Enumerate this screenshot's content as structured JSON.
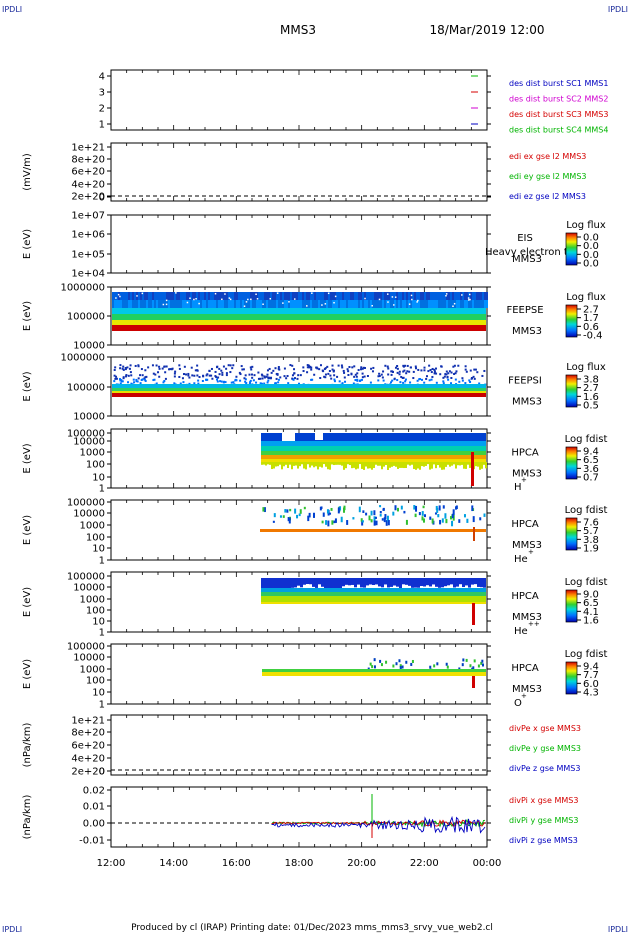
{
  "corner_label": "IPDLI",
  "header": {
    "mission": "MMS3",
    "datetime": "18/Mar/2019 12:00"
  },
  "footer": "Produced by cl (IRAP)   Printing date: 01/Dec/2023   mms_mms3_srvy_vue_web2.cl",
  "colors": {
    "red": "#d40000",
    "green": "#00b400",
    "blue": "#0000c0",
    "magenta": "#d000d0"
  },
  "time_axis": {
    "ticks": [
      "12:00",
      "14:00",
      "16:00",
      "18:00",
      "20:00",
      "22:00",
      "00:00"
    ]
  },
  "chart_data": [
    {
      "type": "line",
      "id": "burst",
      "ylabel": "",
      "y_ticks": [
        "4",
        "3",
        "2",
        "1"
      ],
      "legend": [
        {
          "label": "des dist burst SC1 MMS1",
          "color": "blue"
        },
        {
          "label": "des dist burst SC2 MMS2",
          "color": "magenta"
        },
        {
          "label": "des dist burst SC3 MMS3",
          "color": "red"
        },
        {
          "label": "des dist burst SC4 MMS4",
          "color": "green"
        }
      ]
    },
    {
      "type": "line",
      "id": "edi",
      "ylabel": "(mV/m)",
      "y_ticks": [
        "1e+21",
        "8e+20",
        "6e+20",
        "4e+20",
        "2e+20",
        "0"
      ],
      "legend": [
        {
          "label": "edi ex gse l2 MMS3",
          "color": "red"
        },
        {
          "label": "edi ey gse l2 MMS3",
          "color": "green"
        },
        {
          "label": "edi ez gse l2 MMS3",
          "color": "blue"
        }
      ]
    },
    {
      "type": "heatmap",
      "id": "eis",
      "ylabel": "E (eV)",
      "y_ticks": [
        "1e+07",
        "1e+06",
        "1e+05",
        "1e+04"
      ],
      "instrument": "EIS",
      "spacecraft": "MMS3",
      "note": "Heavy electron to",
      "colorbar": {
        "title": "Log flux",
        "ticks": [
          "0.0",
          "0.0",
          "0.0",
          "0.0"
        ]
      }
    },
    {
      "type": "heatmap",
      "id": "feepse",
      "ylabel": "E (eV)",
      "y_ticks": [
        "1000000",
        "100000",
        "10000"
      ],
      "instrument": "FEEPSE",
      "spacecraft": "MMS3",
      "colorbar": {
        "title": "Log flux",
        "ticks": [
          "2.7",
          "1.7",
          "0.6",
          "-0.4"
        ]
      }
    },
    {
      "type": "heatmap",
      "id": "feepsi",
      "ylabel": "E (eV)",
      "y_ticks": [
        "1000000",
        "100000",
        "10000"
      ],
      "instrument": "FEEPSI",
      "spacecraft": "MMS3",
      "colorbar": {
        "title": "Log flux",
        "ticks": [
          "3.8",
          "2.7",
          "1.6",
          "0.5"
        ]
      }
    },
    {
      "type": "heatmap",
      "id": "hpca_h",
      "ylabel": "E (eV)",
      "y_ticks": [
        "100000",
        "10000",
        "1000",
        "100",
        "10",
        "1"
      ],
      "instrument": "HPCA",
      "spacecraft": "MMS3",
      "species": "H",
      "charge": "+",
      "colorbar": {
        "title": "Log fdist",
        "ticks": [
          "9.4",
          "6.5",
          "3.6",
          "0.7"
        ]
      }
    },
    {
      "type": "heatmap",
      "id": "hpca_he1",
      "ylabel": "E (eV)",
      "y_ticks": [
        "100000",
        "10000",
        "1000",
        "100",
        "10",
        "1"
      ],
      "instrument": "HPCA",
      "spacecraft": "MMS3",
      "species": "He",
      "charge": "+",
      "colorbar": {
        "title": "Log fdist",
        "ticks": [
          "7.6",
          "5.7",
          "3.8",
          "1.9"
        ]
      }
    },
    {
      "type": "heatmap",
      "id": "hpca_he2",
      "ylabel": "E (eV)",
      "y_ticks": [
        "100000",
        "10000",
        "1000",
        "100",
        "10",
        "1"
      ],
      "instrument": "HPCA",
      "spacecraft": "MMS3",
      "species": "He",
      "charge": "++",
      "colorbar": {
        "title": "Log fdist",
        "ticks": [
          "9.0",
          "6.5",
          "4.1",
          "1.6"
        ]
      }
    },
    {
      "type": "heatmap",
      "id": "hpca_o",
      "ylabel": "E (eV)",
      "y_ticks": [
        "100000",
        "10000",
        "1000",
        "100",
        "10",
        "1"
      ],
      "instrument": "HPCA",
      "spacecraft": "MMS3",
      "species": "O",
      "charge": "+",
      "colorbar": {
        "title": "Log fdist",
        "ticks": [
          "9.4",
          "7.7",
          "6.0",
          "4.3"
        ]
      }
    },
    {
      "type": "line",
      "id": "divpe",
      "ylabel": "(nPa/km)",
      "y_ticks": [
        "1e+21",
        "8e+20",
        "6e+20",
        "4e+20",
        "2e+20",
        "0"
      ],
      "legend": [
        {
          "label": "divPe x gse MMS3",
          "color": "red"
        },
        {
          "label": "divPe y gse MMS3",
          "color": "green"
        },
        {
          "label": "divPe z gse MMS3",
          "color": "blue"
        }
      ]
    },
    {
      "type": "line",
      "id": "divpi",
      "ylabel": "(nPa/km)",
      "y_ticks": [
        "0.02",
        "0.01",
        "0.00",
        "-0.01"
      ],
      "legend": [
        {
          "label": "divPi x gse MMS3",
          "color": "red"
        },
        {
          "label": "divPi y gse MMS3",
          "color": "green"
        },
        {
          "label": "divPi z gse MMS3",
          "color": "blue"
        }
      ]
    }
  ]
}
